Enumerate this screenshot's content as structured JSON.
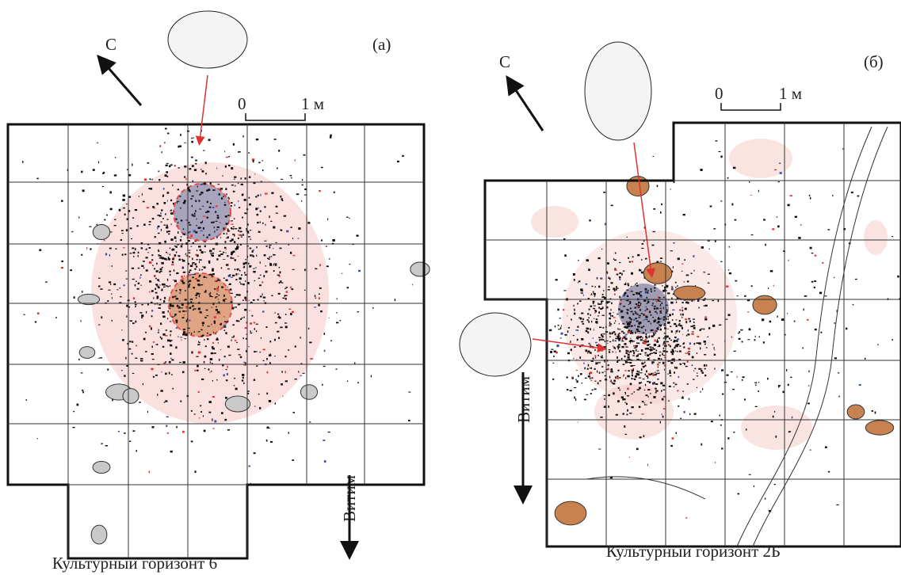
{
  "panels": [
    {
      "label": "(а)",
      "north": "С",
      "scale": {
        "zero": "0",
        "one": "1 м"
      },
      "river": "Витим",
      "caption": "Культурный горизонт 6"
    },
    {
      "label": "(б)",
      "north": "С",
      "scale": {
        "zero": "0",
        "one": "1 м"
      },
      "river": "Витим",
      "caption": "Культурный горизонт 2Б"
    }
  ]
}
